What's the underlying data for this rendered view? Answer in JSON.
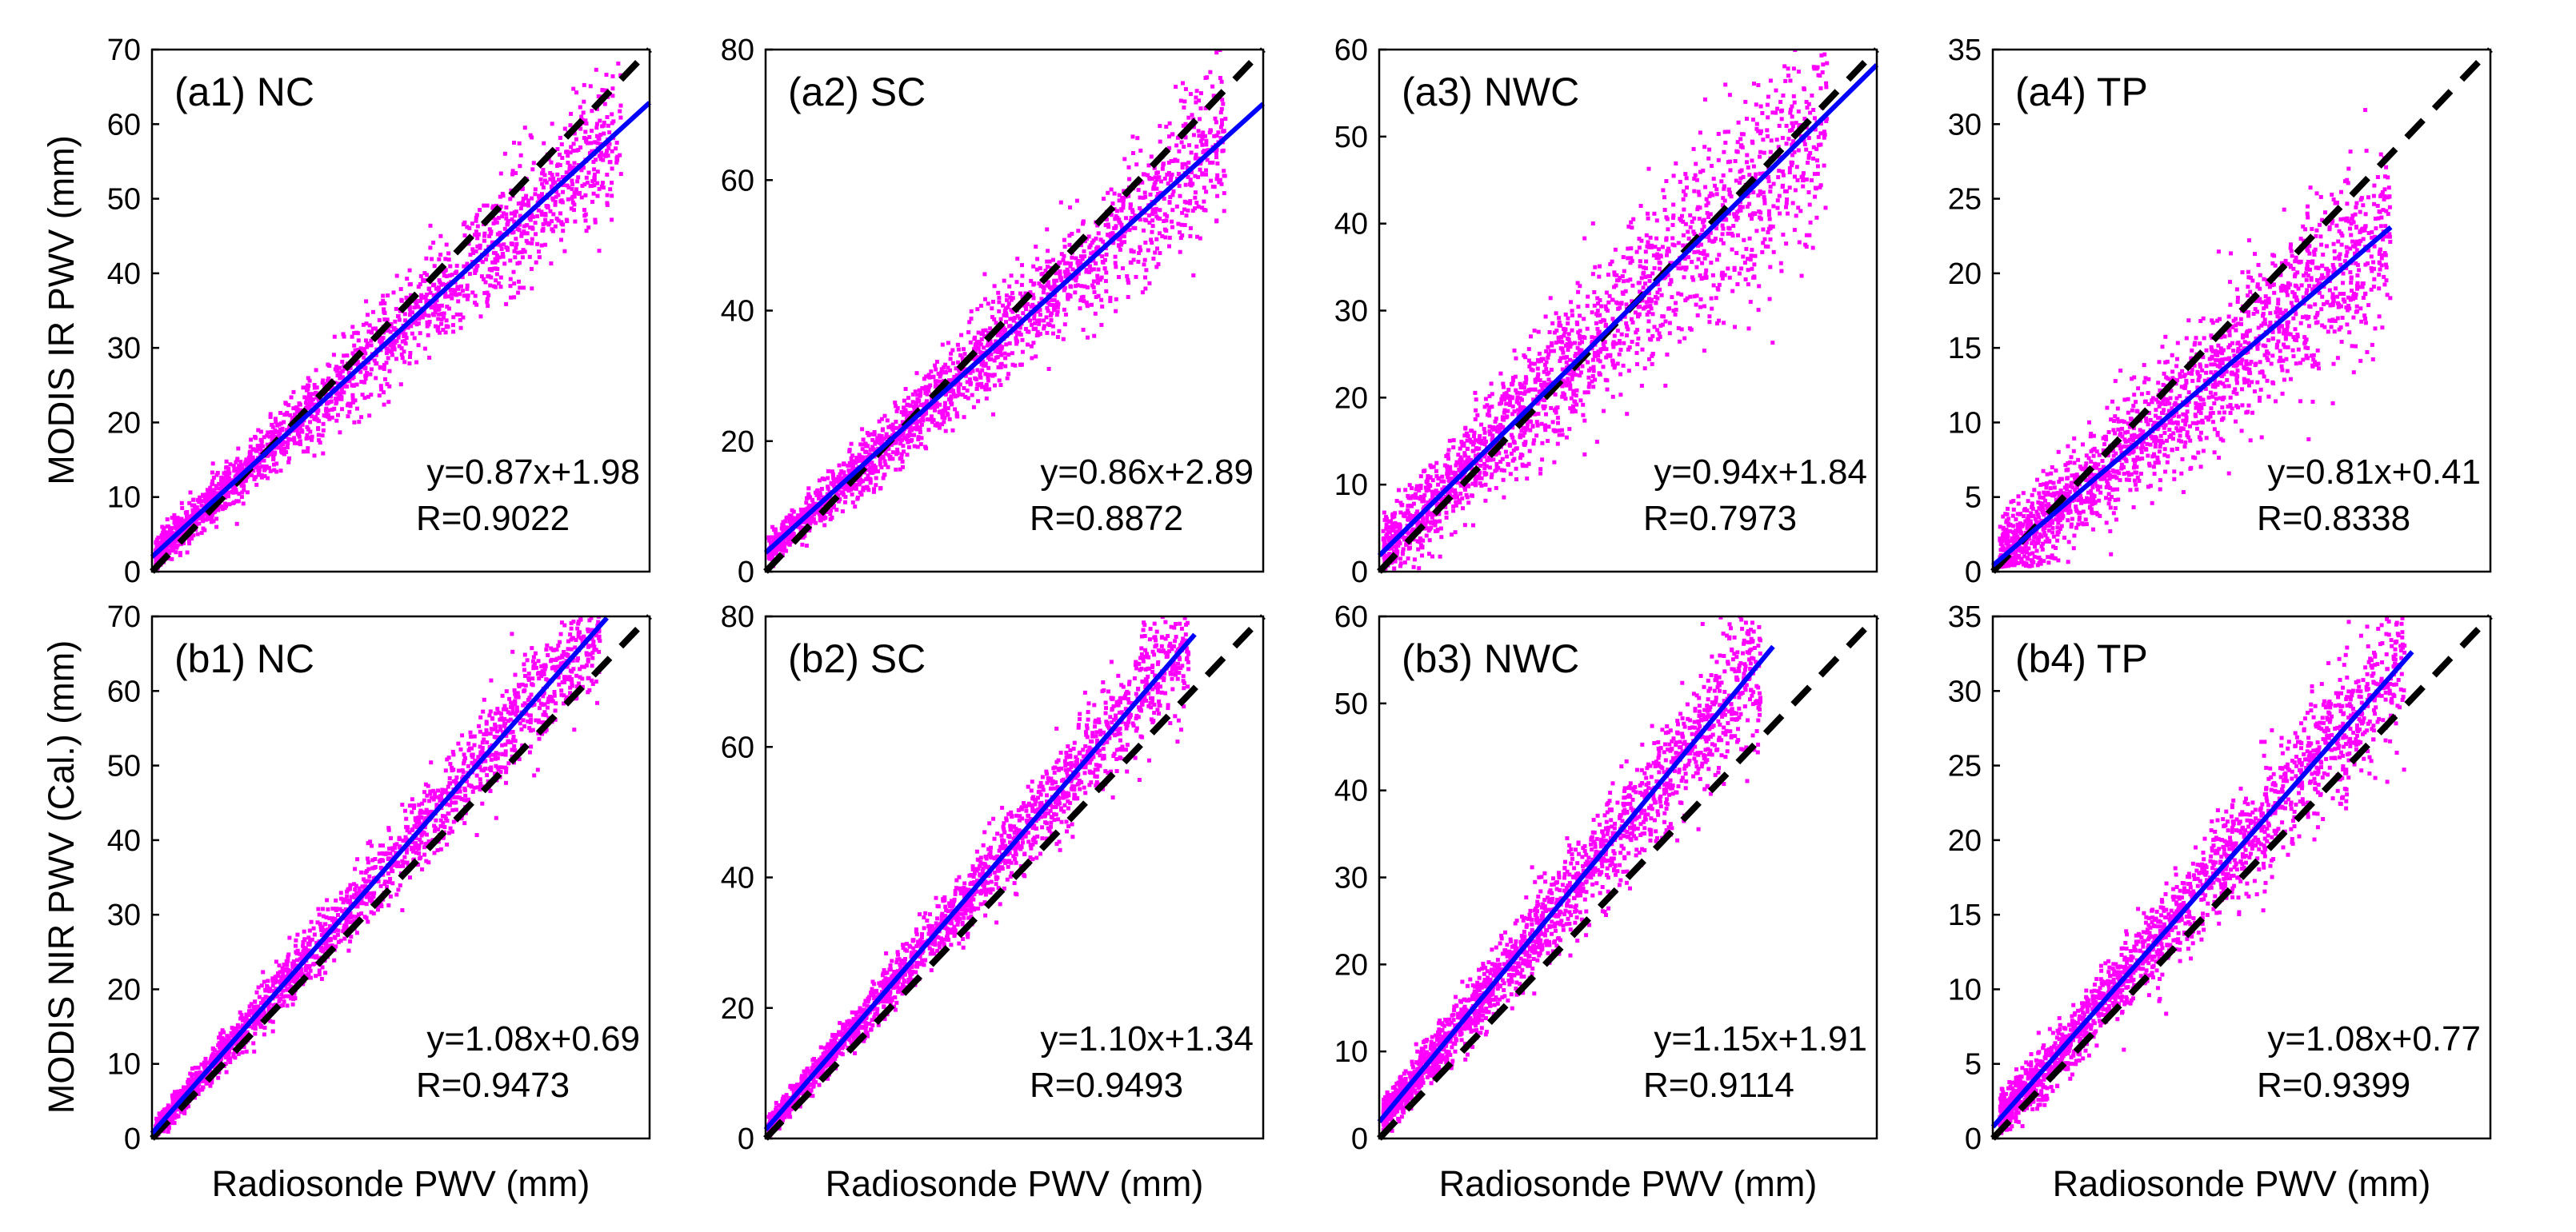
{
  "figure": {
    "ylabel_top": "MODIS IR PWV (mm)",
    "ylabel_bottom": "MODIS NIR PWV (Cal.) (mm)",
    "xlabel": "Radiosonde PWV (mm)"
  },
  "colors": {
    "scatter": "#ff00ff",
    "fit_line": "#0000ff",
    "one_to_one_line": "#000000",
    "axes": "#000000"
  },
  "chart_data": [
    {
      "id": "a1",
      "type": "scatter",
      "title": "(a1) NC",
      "ylim": [
        0,
        70
      ],
      "xlim": [
        0,
        70
      ],
      "yticks": [
        0,
        10,
        20,
        30,
        40,
        50,
        60,
        70
      ],
      "slope": 0.87,
      "intercept": 1.98,
      "r": 0.9022,
      "equation": "y=0.87x+1.98",
      "r_label": "R=0.9022",
      "fit_range": [
        0,
        70
      ],
      "cloud_max": 66,
      "spread": 0.45,
      "ylabel": "MODIS IR PWV (mm)",
      "xlabel": ""
    },
    {
      "id": "a2",
      "type": "scatter",
      "title": "(a2) SC",
      "ylim": [
        0,
        80
      ],
      "xlim": [
        0,
        80
      ],
      "yticks": [
        0,
        20,
        40,
        60,
        80
      ],
      "slope": 0.86,
      "intercept": 2.89,
      "r": 0.8872,
      "equation": "y=0.86x+2.89",
      "r_label": "R=0.8872",
      "fit_range": [
        0,
        80
      ],
      "cloud_max": 74,
      "spread": 0.48,
      "ylabel": "",
      "xlabel": ""
    },
    {
      "id": "a3",
      "type": "scatter",
      "title": "(a3) NWC",
      "ylim": [
        0,
        60
      ],
      "xlim": [
        0,
        60
      ],
      "yticks": [
        0,
        10,
        20,
        30,
        40,
        50,
        60
      ],
      "slope": 0.94,
      "intercept": 1.84,
      "r": 0.7973,
      "equation": "y=0.94x+1.84",
      "r_label": "R=0.7973",
      "fit_range": [
        0,
        60
      ],
      "cloud_max": 54,
      "spread": 0.7,
      "ylabel": "",
      "xlabel": ""
    },
    {
      "id": "a4",
      "type": "scatter",
      "title": "(a4) TP",
      "ylim": [
        0,
        35
      ],
      "xlim": [
        0,
        35
      ],
      "yticks": [
        0,
        5,
        10,
        15,
        20,
        25,
        30,
        35
      ],
      "slope": 0.81,
      "intercept": 0.41,
      "r": 0.8338,
      "equation": "y=0.81x+0.41",
      "r_label": "R=0.8338",
      "fit_range": [
        0,
        28
      ],
      "cloud_max": 28,
      "spread": 0.6,
      "ylabel": "",
      "xlabel": ""
    },
    {
      "id": "b1",
      "type": "scatter",
      "title": "(b1) NC",
      "ylim": [
        0,
        70
      ],
      "xlim": [
        0,
        70
      ],
      "yticks": [
        0,
        10,
        20,
        30,
        40,
        50,
        60,
        70
      ],
      "slope": 1.08,
      "intercept": 0.69,
      "r": 0.9473,
      "equation": "y=1.08x+0.69",
      "r_label": "R=0.9473",
      "fit_range": [
        0,
        64
      ],
      "cloud_max": 63,
      "spread": 0.33,
      "ylabel": "MODIS NIR PWV (Cal.) (mm)",
      "xlabel": "Radiosonde PWV (mm)"
    },
    {
      "id": "b2",
      "type": "scatter",
      "title": "(b2) SC",
      "ylim": [
        0,
        80
      ],
      "xlim": [
        0,
        80
      ],
      "yticks": [
        0,
        20,
        40,
        60,
        80
      ],
      "slope": 1.1,
      "intercept": 1.34,
      "r": 0.9493,
      "equation": "y=1.10x+1.34",
      "r_label": "R=0.9493",
      "fit_range": [
        0,
        69
      ],
      "cloud_max": 68,
      "spread": 0.33,
      "ylabel": "",
      "xlabel": "Radiosonde PWV (mm)"
    },
    {
      "id": "b3",
      "type": "scatter",
      "title": "(b3) NWC",
      "ylim": [
        0,
        60
      ],
      "xlim": [
        0,
        60
      ],
      "yticks": [
        0,
        10,
        20,
        30,
        40,
        50,
        60
      ],
      "slope": 1.15,
      "intercept": 1.91,
      "r": 0.9114,
      "equation": "y=1.15x+1.91",
      "r_label": "R=0.9114",
      "fit_range": [
        0,
        47.5
      ],
      "cloud_max": 46,
      "spread": 0.4,
      "ylabel": "",
      "xlabel": "Radiosonde PWV (mm)"
    },
    {
      "id": "b4",
      "type": "scatter",
      "title": "(b4) TP",
      "ylim": [
        0,
        35
      ],
      "xlim": [
        0,
        35
      ],
      "yticks": [
        0,
        5,
        10,
        15,
        20,
        25,
        30,
        35
      ],
      "slope": 1.08,
      "intercept": 0.77,
      "r": 0.9399,
      "equation": "y=1.08x+0.77",
      "r_label": "R=0.9399",
      "fit_range": [
        0,
        29.5
      ],
      "cloud_max": 29,
      "spread": 0.35,
      "ylabel": "",
      "xlabel": "Radiosonde PWV (mm)"
    }
  ]
}
